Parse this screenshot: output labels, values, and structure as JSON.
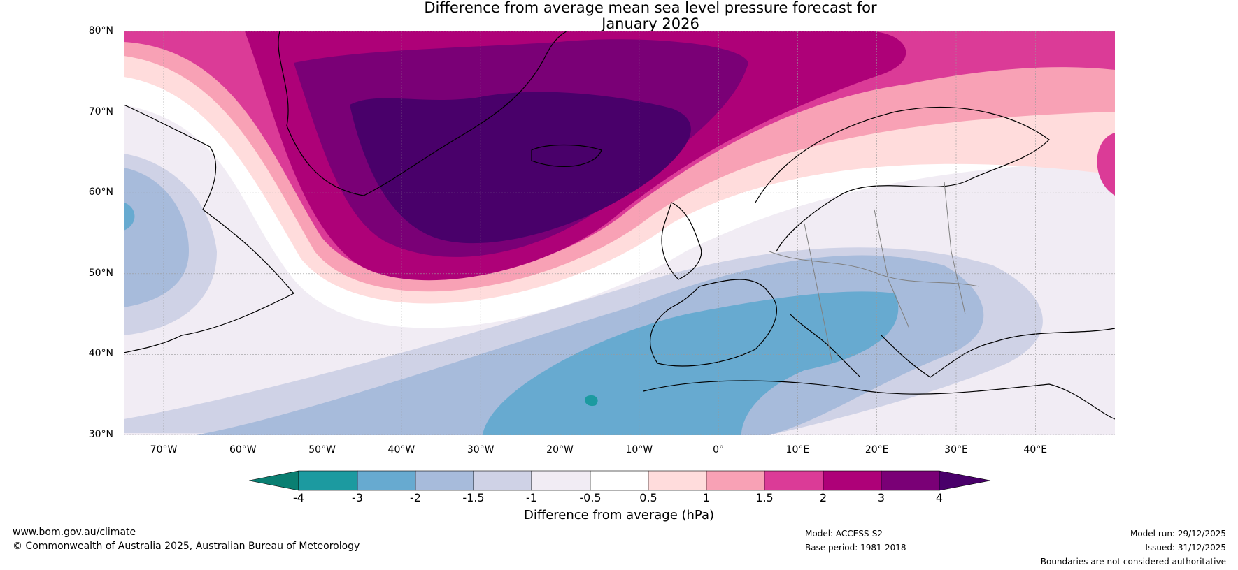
{
  "title_line1": "Difference from average mean sea level pressure forecast for",
  "title_line2": "January 2026",
  "map": {
    "region": "North Atlantic and Europe",
    "lat_labels": [
      "80°N",
      "70°N",
      "60°N",
      "50°N",
      "40°N",
      "30°N"
    ],
    "lon_labels": [
      "70°W",
      "60°W",
      "50°W",
      "40°W",
      "30°W",
      "20°W",
      "10°W",
      "0°",
      "10°E",
      "20°E",
      "30°E",
      "40°E"
    ],
    "features": [
      "pressure-anomaly-high-iceland",
      "pressure-anomaly-low-mediterranean"
    ]
  },
  "colorbar": {
    "label": "Difference from average (hPa)",
    "ticks": [
      "-4",
      "-3",
      "-2",
      "-1.5",
      "-1",
      "-0.5",
      "0.5",
      "1",
      "1.5",
      "2",
      "3",
      "4"
    ],
    "colors": [
      "#0a7f72",
      "#1c9aa0",
      "#67aad0",
      "#a7bbdb",
      "#cfd2e6",
      "#f1ecf4",
      "#ffffff",
      "#ffdcdc",
      "#f8a1b5",
      "#db3b97",
      "#ae0178",
      "#7a0076",
      "#49006a"
    ]
  },
  "footer": {
    "website": "www.bom.gov.au/climate",
    "copyright": "© Commonwealth of Australia 2025, Australian Bureau of Meteorology",
    "model": "Model: ACCESS-S2",
    "base_period": "Base period: 1981-2018",
    "model_run": "Model run: 29/12/2025",
    "issued": "Issued: 31/12/2025",
    "disclaimer": "Boundaries are not considered authoritative"
  }
}
